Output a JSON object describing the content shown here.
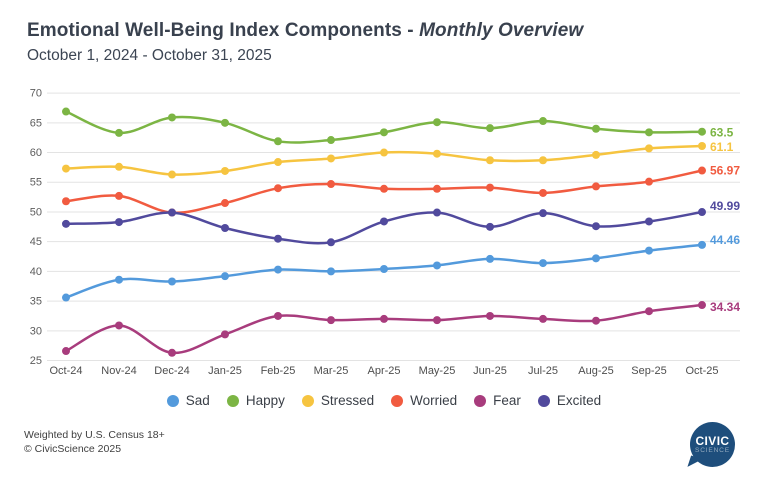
{
  "header": {
    "title_main": "Emotional Well-Being Index Components - ",
    "title_italic": "Monthly Overview",
    "subtitle": "October 1, 2024 - October 31, 2025"
  },
  "chart_data": {
    "type": "line",
    "title": "Emotional Well-Being Index Components - Monthly Overview",
    "subtitle": "October 1, 2024 - October 31, 2025",
    "categories": [
      "Oct-24",
      "Nov-24",
      "Dec-24",
      "Jan-25",
      "Feb-25",
      "Mar-25",
      "Apr-25",
      "May-25",
      "Jun-25",
      "Jul-25",
      "Aug-25",
      "Sep-25",
      "Oct-25"
    ],
    "y_ticks": [
      70,
      65,
      60,
      55,
      50,
      45,
      40,
      35,
      30,
      25
    ],
    "ylim": [
      25,
      70
    ],
    "grid": "horizontal-only",
    "legend_position": "bottom",
    "series": [
      {
        "name": "Sad",
        "color": "#539adc",
        "end_label": "44.46",
        "values": [
          35.6,
          38.6,
          38.3,
          39.2,
          40.3,
          40.0,
          40.4,
          41.0,
          42.1,
          41.4,
          42.2,
          43.5,
          44.46
        ]
      },
      {
        "name": "Happy",
        "color": "#7cb544",
        "end_label": "63.5",
        "values": [
          66.9,
          63.3,
          65.9,
          65.0,
          61.9,
          62.1,
          63.4,
          65.1,
          64.1,
          65.3,
          64.0,
          63.4,
          63.5
        ]
      },
      {
        "name": "Stressed",
        "color": "#f6c440",
        "end_label": "61.1",
        "values": [
          57.3,
          57.6,
          56.3,
          56.9,
          58.4,
          59.0,
          60.0,
          59.8,
          58.7,
          58.7,
          59.6,
          60.7,
          61.1
        ]
      },
      {
        "name": "Worried",
        "color": "#f15b40",
        "end_label": "56.97",
        "values": [
          51.8,
          52.7,
          49.9,
          51.5,
          54.0,
          54.7,
          53.9,
          53.9,
          54.1,
          53.2,
          54.3,
          55.1,
          56.97
        ]
      },
      {
        "name": "Fear",
        "color": "#a83c7d",
        "end_label": "34.34",
        "values": [
          26.6,
          30.9,
          26.3,
          29.4,
          32.5,
          31.8,
          32.0,
          31.8,
          32.5,
          32.0,
          31.7,
          33.3,
          34.34
        ]
      },
      {
        "name": "Excited",
        "color": "#514a9d",
        "end_label": "49.99",
        "values": [
          48.0,
          48.3,
          49.9,
          47.3,
          45.5,
          44.9,
          48.4,
          49.9,
          47.5,
          49.8,
          47.6,
          48.4,
          49.99
        ]
      }
    ]
  },
  "footer": {
    "line1": "Weighted by U.S. Census 18+",
    "line2": "© CivicScience 2025"
  },
  "logo": {
    "top": "CIVIC",
    "bottom": "SCIENCE"
  }
}
